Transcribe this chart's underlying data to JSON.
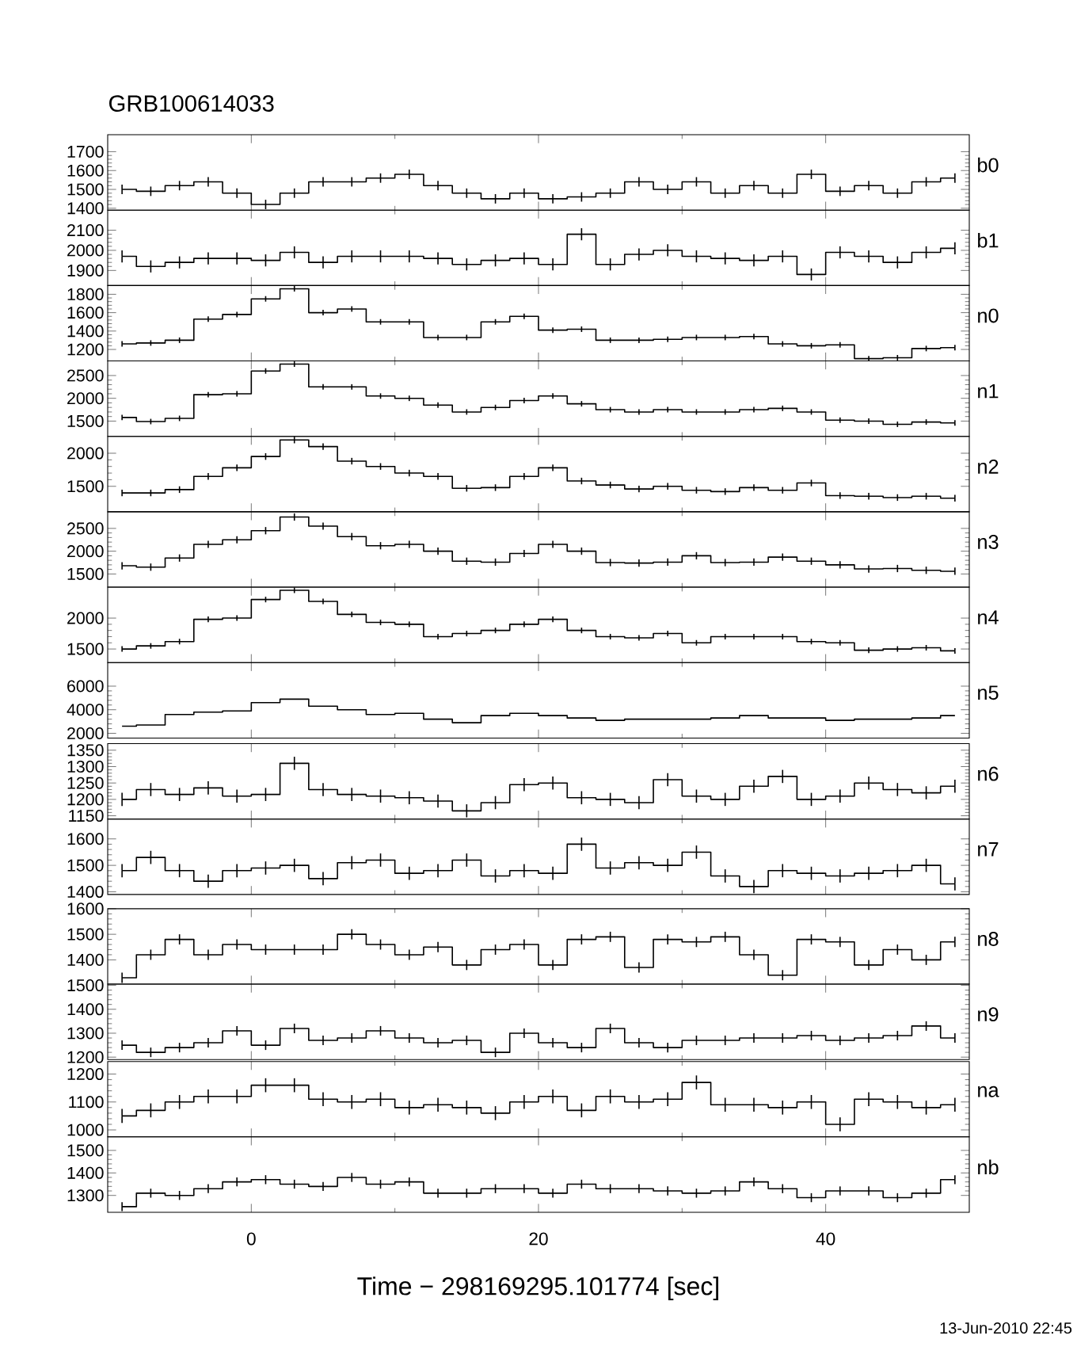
{
  "chart_data": [
    {
      "type": "step",
      "title": "GRB100614033",
      "x": [
        -9,
        -7,
        -5,
        -3,
        -1,
        1,
        3,
        5,
        7,
        9,
        11,
        13,
        15,
        17,
        19,
        21,
        23,
        25,
        27,
        29,
        31,
        33,
        35,
        37,
        39,
        41,
        43,
        45,
        47,
        49
      ],
      "xlim": [
        -10,
        50
      ],
      "xticks": [
        0,
        20,
        40
      ],
      "ylim": [
        1390,
        1790
      ],
      "yticks": [
        1400,
        1500,
        1600,
        1700
      ],
      "tick_labels": "y",
      "series": [
        {
          "name": "b0",
          "color": "#000000",
          "values": [
            1500,
            1490,
            1520,
            1540,
            1480,
            1420,
            1480,
            1540,
            1540,
            1560,
            1580,
            1520,
            1480,
            1450,
            1480,
            1450,
            1460,
            1480,
            1540,
            1500,
            1540,
            1480,
            1520,
            1480,
            1580,
            1490,
            1520,
            1480,
            1540,
            1560
          ],
          "errors": [
            25,
            25,
            25,
            25,
            25,
            25,
            25,
            25,
            25,
            25,
            25,
            25,
            25,
            25,
            25,
            25,
            25,
            25,
            25,
            25,
            25,
            25,
            25,
            25,
            25,
            25,
            25,
            25,
            25,
            25
          ]
        }
      ]
    },
    {
      "type": "step",
      "x": [
        -9,
        -7,
        -5,
        -3,
        -1,
        1,
        3,
        5,
        7,
        9,
        11,
        13,
        15,
        17,
        19,
        21,
        23,
        25,
        27,
        29,
        31,
        33,
        35,
        37,
        39,
        41,
        43,
        45,
        47,
        49
      ],
      "xlim": [
        -10,
        50
      ],
      "xticks": [
        0,
        20,
        40
      ],
      "ylim": [
        1825,
        2200
      ],
      "yticks": [
        1900,
        2000,
        2100
      ],
      "tick_labels": "y",
      "series": [
        {
          "name": "b1",
          "color": "#000000",
          "values": [
            1970,
            1920,
            1940,
            1960,
            1960,
            1950,
            1990,
            1940,
            1970,
            1970,
            1970,
            1960,
            1930,
            1950,
            1960,
            1930,
            2080,
            1930,
            1980,
            2000,
            1970,
            1960,
            1950,
            1970,
            1880,
            1990,
            1970,
            1940,
            1990,
            2010
          ],
          "errors": [
            30,
            30,
            30,
            30,
            30,
            30,
            30,
            30,
            30,
            30,
            30,
            30,
            30,
            30,
            30,
            30,
            30,
            30,
            30,
            30,
            30,
            30,
            30,
            30,
            30,
            30,
            30,
            30,
            30,
            30
          ]
        }
      ]
    },
    {
      "type": "step",
      "x": [
        -9,
        -7,
        -5,
        -3,
        -1,
        1,
        3,
        5,
        7,
        9,
        11,
        13,
        15,
        17,
        19,
        21,
        23,
        25,
        27,
        29,
        31,
        33,
        35,
        37,
        39,
        41,
        43,
        45,
        47,
        49
      ],
      "xlim": [
        -10,
        50
      ],
      "xticks": [
        0,
        20,
        40
      ],
      "ylim": [
        1075,
        1895
      ],
      "yticks": [
        1200,
        1400,
        1600,
        1800
      ],
      "tick_labels": "y",
      "series": [
        {
          "name": "n0",
          "color": "#000000",
          "values": [
            1260,
            1270,
            1300,
            1530,
            1580,
            1750,
            1860,
            1600,
            1640,
            1500,
            1500,
            1330,
            1330,
            1500,
            1560,
            1410,
            1420,
            1300,
            1300,
            1310,
            1330,
            1330,
            1340,
            1260,
            1240,
            1250,
            1100,
            1110,
            1210,
            1220
          ],
          "errors": [
            30,
            30,
            30,
            30,
            30,
            30,
            30,
            30,
            30,
            30,
            30,
            30,
            30,
            30,
            30,
            30,
            30,
            30,
            30,
            30,
            30,
            30,
            30,
            30,
            30,
            30,
            30,
            30,
            30,
            30
          ]
        }
      ]
    },
    {
      "type": "step",
      "x": [
        -9,
        -7,
        -5,
        -3,
        -1,
        1,
        3,
        5,
        7,
        9,
        11,
        13,
        15,
        17,
        19,
        21,
        23,
        25,
        27,
        29,
        31,
        33,
        35,
        37,
        39,
        41,
        43,
        45,
        47,
        49
      ],
      "xlim": [
        -10,
        50
      ],
      "xticks": [
        0,
        20,
        40
      ],
      "ylim": [
        1165,
        2820
      ],
      "yticks": [
        1500,
        2000,
        2500
      ],
      "tick_labels": "y",
      "series": [
        {
          "name": "n1",
          "color": "#000000",
          "values": [
            1580,
            1490,
            1560,
            2080,
            2100,
            2600,
            2750,
            2250,
            2250,
            2050,
            2000,
            1850,
            1700,
            1800,
            1950,
            2050,
            1880,
            1750,
            1700,
            1750,
            1700,
            1700,
            1750,
            1780,
            1700,
            1520,
            1500,
            1430,
            1480,
            1460
          ],
          "errors": [
            60,
            60,
            60,
            60,
            60,
            60,
            60,
            60,
            60,
            60,
            60,
            60,
            60,
            60,
            60,
            60,
            60,
            60,
            60,
            60,
            60,
            60,
            60,
            60,
            60,
            60,
            60,
            60,
            60,
            60
          ]
        }
      ]
    },
    {
      "type": "step",
      "x": [
        -9,
        -7,
        -5,
        -3,
        -1,
        1,
        3,
        5,
        7,
        9,
        11,
        13,
        15,
        17,
        19,
        21,
        23,
        25,
        27,
        29,
        31,
        33,
        35,
        37,
        39,
        41,
        43,
        45,
        47,
        49
      ],
      "xlim": [
        -10,
        50
      ],
      "xticks": [
        0,
        20,
        40
      ],
      "ylim": [
        1115,
        2255
      ],
      "yticks": [
        1500,
        2000
      ],
      "tick_labels": "y",
      "series": [
        {
          "name": "n2",
          "color": "#000000",
          "values": [
            1400,
            1400,
            1450,
            1650,
            1780,
            1950,
            2200,
            2100,
            1880,
            1800,
            1700,
            1650,
            1470,
            1480,
            1650,
            1780,
            1580,
            1520,
            1460,
            1500,
            1440,
            1420,
            1480,
            1440,
            1550,
            1360,
            1350,
            1330,
            1350,
            1320
          ],
          "errors": [
            50,
            50,
            50,
            50,
            50,
            50,
            50,
            50,
            50,
            50,
            50,
            50,
            50,
            50,
            50,
            50,
            50,
            50,
            50,
            50,
            50,
            50,
            50,
            50,
            50,
            50,
            50,
            50,
            50,
            50
          ]
        }
      ]
    },
    {
      "type": "step",
      "x": [
        -9,
        -7,
        -5,
        -3,
        -1,
        1,
        3,
        5,
        7,
        9,
        11,
        13,
        15,
        17,
        19,
        21,
        23,
        25,
        27,
        29,
        31,
        33,
        35,
        37,
        39,
        41,
        43,
        45,
        47,
        49
      ],
      "xlim": [
        -10,
        50
      ],
      "xticks": [
        0,
        20,
        40
      ],
      "ylim": [
        1210,
        2865
      ],
      "yticks": [
        1500,
        2000,
        2500
      ],
      "tick_labels": "y",
      "series": [
        {
          "name": "n3",
          "color": "#000000",
          "values": [
            1680,
            1650,
            1850,
            2150,
            2250,
            2450,
            2750,
            2550,
            2320,
            2120,
            2150,
            2000,
            1780,
            1760,
            1950,
            2150,
            2000,
            1750,
            1740,
            1760,
            1900,
            1750,
            1760,
            1870,
            1780,
            1700,
            1610,
            1620,
            1580,
            1560
          ],
          "errors": [
            80,
            80,
            80,
            80,
            80,
            80,
            80,
            80,
            80,
            80,
            80,
            80,
            80,
            80,
            80,
            80,
            80,
            80,
            80,
            80,
            80,
            80,
            80,
            80,
            80,
            80,
            80,
            80,
            80,
            80
          ]
        }
      ]
    },
    {
      "type": "step",
      "x": [
        -9,
        -7,
        -5,
        -3,
        -1,
        1,
        3,
        5,
        7,
        9,
        11,
        13,
        15,
        17,
        19,
        21,
        23,
        25,
        27,
        29,
        31,
        33,
        35,
        37,
        39,
        41,
        43,
        45,
        47,
        49
      ],
      "xlim": [
        -10,
        50
      ],
      "xticks": [
        0,
        20,
        40
      ],
      "ylim": [
        1280,
        2500
      ],
      "yticks": [
        1500,
        2000
      ],
      "tick_labels": "y",
      "series": [
        {
          "name": "n4",
          "color": "#000000",
          "values": [
            1500,
            1550,
            1620,
            1980,
            2000,
            2300,
            2450,
            2270,
            2060,
            1930,
            1900,
            1700,
            1750,
            1800,
            1900,
            1980,
            1800,
            1700,
            1680,
            1750,
            1600,
            1700,
            1700,
            1700,
            1620,
            1600,
            1480,
            1500,
            1520,
            1470
          ],
          "errors": [
            45,
            45,
            45,
            45,
            45,
            45,
            45,
            45,
            45,
            45,
            45,
            45,
            45,
            45,
            45,
            45,
            45,
            45,
            45,
            45,
            45,
            45,
            45,
            45,
            45,
            45,
            45,
            45,
            45,
            45
          ]
        }
      ]
    },
    {
      "type": "step",
      "x": [
        -9,
        -7,
        -5,
        -3,
        -1,
        1,
        3,
        5,
        7,
        9,
        11,
        13,
        15,
        17,
        19,
        21,
        23,
        25,
        27,
        29,
        31,
        33,
        35,
        37,
        39,
        41,
        43,
        45,
        47,
        49
      ],
      "xlim": [
        -10,
        50
      ],
      "xticks": [
        0,
        20,
        40
      ],
      "ylim": [
        1600,
        8000
      ],
      "yticks": [
        2000,
        4000,
        6000
      ],
      "tick_labels": "y",
      "series": [
        {
          "name": "n5",
          "color": "#000000",
          "values": [
            2600,
            2700,
            3600,
            3800,
            3900,
            4600,
            4900,
            4300,
            4000,
            3600,
            3700,
            3200,
            2900,
            3500,
            3700,
            3500,
            3300,
            3100,
            3200,
            3200,
            3200,
            3300,
            3500,
            3300,
            3300,
            3100,
            3200,
            3200,
            3300,
            3500
          ]
        }
      ]
    },
    {
      "type": "step",
      "x": [
        -9,
        -7,
        -5,
        -3,
        -1,
        1,
        3,
        5,
        7,
        9,
        11,
        13,
        15,
        17,
        19,
        21,
        23,
        25,
        27,
        29,
        31,
        33,
        35,
        37,
        39,
        41,
        43,
        45,
        47,
        49
      ],
      "xlim": [
        -10,
        50
      ],
      "xticks": [
        0,
        20,
        40
      ],
      "ylim": [
        1140,
        1370
      ],
      "yticks": [
        1150,
        1200,
        1250,
        1300,
        1350
      ],
      "tick_labels": "y",
      "series": [
        {
          "name": "n6",
          "color": "#000000",
          "values": [
            1200,
            1230,
            1215,
            1235,
            1210,
            1215,
            1310,
            1230,
            1215,
            1210,
            1205,
            1195,
            1165,
            1190,
            1245,
            1250,
            1205,
            1200,
            1190,
            1260,
            1210,
            1200,
            1240,
            1270,
            1200,
            1210,
            1250,
            1230,
            1220,
            1240
          ],
          "errors": [
            20,
            20,
            20,
            20,
            20,
            20,
            20,
            20,
            20,
            20,
            20,
            20,
            20,
            20,
            20,
            20,
            20,
            20,
            20,
            20,
            20,
            20,
            20,
            20,
            20,
            20,
            20,
            20,
            20,
            20
          ]
        }
      ]
    },
    {
      "type": "step",
      "x": [
        -9,
        -7,
        -5,
        -3,
        -1,
        1,
        3,
        5,
        7,
        9,
        11,
        13,
        15,
        17,
        19,
        21,
        23,
        25,
        27,
        29,
        31,
        33,
        35,
        37,
        39,
        41,
        43,
        45,
        47,
        49
      ],
      "xlim": [
        -10,
        50
      ],
      "xticks": [
        0,
        20,
        40
      ],
      "ylim": [
        1390,
        1675
      ],
      "yticks": [
        1400,
        1500,
        1600
      ],
      "tick_labels": "y",
      "series": [
        {
          "name": "n7",
          "color": "#000000",
          "values": [
            1480,
            1530,
            1480,
            1440,
            1480,
            1490,
            1500,
            1450,
            1510,
            1520,
            1470,
            1480,
            1520,
            1460,
            1480,
            1470,
            1580,
            1490,
            1510,
            1500,
            1550,
            1460,
            1420,
            1480,
            1470,
            1460,
            1470,
            1480,
            1500,
            1430
          ],
          "errors": [
            25,
            25,
            25,
            25,
            25,
            25,
            25,
            25,
            25,
            25,
            25,
            25,
            25,
            25,
            25,
            25,
            25,
            25,
            25,
            25,
            25,
            25,
            25,
            25,
            25,
            25,
            25,
            25,
            25,
            25
          ]
        }
      ]
    },
    {
      "type": "step",
      "x": [
        -9,
        -7,
        -5,
        -3,
        -1,
        1,
        3,
        5,
        7,
        9,
        11,
        13,
        15,
        17,
        19,
        21,
        23,
        25,
        27,
        29,
        31,
        33,
        35,
        37,
        39,
        41,
        43,
        45,
        47,
        49
      ],
      "xlim": [
        -10,
        50
      ],
      "xticks": [
        0,
        20,
        40
      ],
      "ylim": [
        1305,
        1600
      ],
      "yticks": [
        1400,
        1500,
        1600
      ],
      "tick_labels": "y",
      "series": [
        {
          "name": "n8",
          "color": "#000000",
          "values": [
            1330,
            1420,
            1480,
            1420,
            1460,
            1440,
            1440,
            1440,
            1500,
            1460,
            1420,
            1450,
            1380,
            1440,
            1460,
            1380,
            1480,
            1490,
            1370,
            1480,
            1470,
            1490,
            1420,
            1340,
            1480,
            1470,
            1380,
            1440,
            1400,
            1470
          ],
          "errors": [
            20,
            20,
            20,
            20,
            20,
            20,
            20,
            20,
            20,
            20,
            20,
            20,
            20,
            20,
            20,
            20,
            20,
            20,
            20,
            20,
            20,
            20,
            20,
            20,
            20,
            20,
            20,
            20,
            20,
            20
          ]
        }
      ]
    },
    {
      "type": "step",
      "x": [
        -9,
        -7,
        -5,
        -3,
        -1,
        1,
        3,
        5,
        7,
        9,
        11,
        13,
        15,
        17,
        19,
        21,
        23,
        25,
        27,
        29,
        31,
        33,
        35,
        37,
        39,
        41,
        43,
        45,
        47,
        49
      ],
      "xlim": [
        -10,
        50
      ],
      "xticks": [
        0,
        20,
        40
      ],
      "ylim": [
        1190,
        1505
      ],
      "yticks": [
        1200,
        1300,
        1400,
        1500
      ],
      "tick_labels": "y",
      "series": [
        {
          "name": "n9",
          "color": "#000000",
          "values": [
            1250,
            1220,
            1240,
            1260,
            1310,
            1250,
            1320,
            1270,
            1280,
            1310,
            1280,
            1260,
            1270,
            1220,
            1300,
            1260,
            1240,
            1320,
            1260,
            1240,
            1270,
            1270,
            1280,
            1280,
            1290,
            1270,
            1280,
            1290,
            1330,
            1280
          ],
          "errors": [
            20,
            20,
            20,
            20,
            20,
            20,
            20,
            20,
            20,
            20,
            20,
            20,
            20,
            20,
            20,
            20,
            20,
            20,
            20,
            20,
            20,
            20,
            20,
            20,
            20,
            20,
            20,
            20,
            20,
            20
          ]
        }
      ]
    },
    {
      "type": "step",
      "x": [
        -9,
        -7,
        -5,
        -3,
        -1,
        1,
        3,
        5,
        7,
        9,
        11,
        13,
        15,
        17,
        19,
        21,
        23,
        25,
        27,
        29,
        31,
        33,
        35,
        37,
        39,
        41,
        43,
        45,
        47,
        49
      ],
      "xlim": [
        -10,
        50
      ],
      "xticks": [
        0,
        20,
        40
      ],
      "ylim": [
        975,
        1245
      ],
      "yticks": [
        1000,
        1100,
        1200
      ],
      "tick_labels": "y",
      "series": [
        {
          "name": "na",
          "color": "#000000",
          "values": [
            1050,
            1070,
            1100,
            1120,
            1120,
            1160,
            1160,
            1110,
            1100,
            1110,
            1080,
            1090,
            1080,
            1060,
            1100,
            1120,
            1070,
            1120,
            1100,
            1110,
            1170,
            1090,
            1090,
            1080,
            1100,
            1020,
            1110,
            1100,
            1080,
            1090
          ],
          "errors": [
            25,
            25,
            25,
            25,
            25,
            25,
            25,
            25,
            25,
            25,
            25,
            25,
            25,
            25,
            25,
            25,
            25,
            25,
            25,
            25,
            25,
            25,
            25,
            25,
            25,
            25,
            25,
            25,
            25,
            25
          ]
        }
      ]
    },
    {
      "type": "step",
      "xlabel": "Time − 298169295.101774 [sec]",
      "annotations": [
        "13-Jun-2010 22:45"
      ],
      "x": [
        -9,
        -7,
        -5,
        -3,
        -1,
        1,
        3,
        5,
        7,
        9,
        11,
        13,
        15,
        17,
        19,
        21,
        23,
        25,
        27,
        29,
        31,
        33,
        35,
        37,
        39,
        41,
        43,
        45,
        47,
        49
      ],
      "xlim": [
        -10,
        50
      ],
      "xticks": [
        0,
        20,
        40
      ],
      "ylim": [
        1225,
        1560
      ],
      "yticks": [
        1300,
        1400,
        1500
      ],
      "series": [
        {
          "name": "nb",
          "color": "#000000",
          "values": [
            1250,
            1310,
            1300,
            1330,
            1360,
            1370,
            1350,
            1340,
            1380,
            1350,
            1360,
            1310,
            1310,
            1330,
            1330,
            1310,
            1350,
            1330,
            1330,
            1320,
            1310,
            1320,
            1360,
            1330,
            1290,
            1320,
            1320,
            1290,
            1310,
            1370
          ],
          "errors": [
            20,
            20,
            20,
            20,
            20,
            20,
            20,
            20,
            20,
            20,
            20,
            20,
            20,
            20,
            20,
            20,
            20,
            20,
            20,
            20,
            20,
            20,
            20,
            20,
            20,
            20,
            20,
            20,
            20,
            20
          ]
        }
      ]
    }
  ]
}
